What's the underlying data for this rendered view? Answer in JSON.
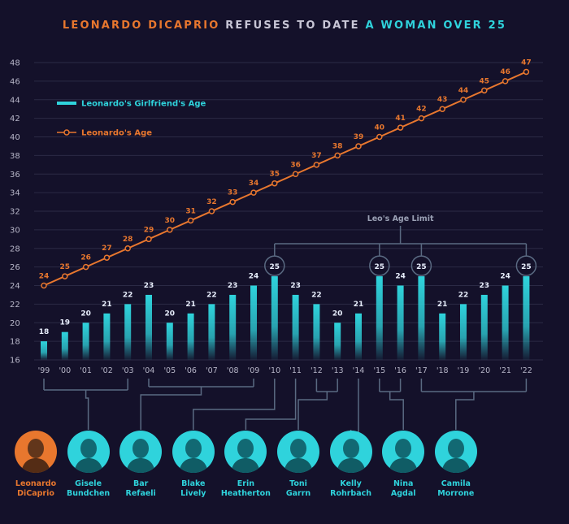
{
  "title": {
    "part1": "LEONARDO DICAPRIO",
    "part2": " REFUSES TO DATE ",
    "part3": "A WOMAN OVER 25"
  },
  "colors": {
    "background": "#14112a",
    "leo": "#e8772e",
    "girlfriend": "#2fd3dc",
    "muted": "#9aa0b4",
    "connector": "#5a6a82"
  },
  "chart_data": {
    "type": "bar",
    "categories": [
      "'99",
      "'00",
      "'01",
      "'02",
      "'03",
      "'04",
      "'05",
      "'06",
      "'07",
      "'08",
      "'09",
      "'10",
      "'11",
      "'12",
      "'13",
      "'14",
      "'15",
      "'16",
      "'17",
      "'18",
      "'19",
      "'20",
      "'21",
      "'22"
    ],
    "series": [
      {
        "name": "Leonardo's Girlfriend's Age",
        "type": "bar",
        "values": [
          18,
          19,
          20,
          21,
          22,
          23,
          20,
          21,
          22,
          23,
          24,
          25,
          23,
          22,
          20,
          21,
          25,
          24,
          25,
          21,
          22,
          23,
          24,
          25
        ]
      },
      {
        "name": "Leonardo's Age",
        "type": "line",
        "values": [
          24,
          25,
          26,
          27,
          28,
          29,
          30,
          31,
          32,
          33,
          34,
          35,
          36,
          37,
          38,
          39,
          40,
          41,
          42,
          43,
          44,
          45,
          46,
          47
        ]
      }
    ],
    "yticks": [
      16,
      18,
      20,
      22,
      24,
      26,
      28,
      30,
      32,
      34,
      36,
      38,
      40,
      42,
      44,
      46,
      48
    ],
    "ylim": [
      16,
      48
    ],
    "grid": true,
    "legend_position": "top-left",
    "annotation": "Leo's Age Limit",
    "limit_highlight_indices": [
      11,
      16,
      18,
      23
    ]
  },
  "people": [
    {
      "first": "Leonardo",
      "last": "DiCaprio",
      "icon": "leonardo-dicaprio-avatar",
      "leo": true
    },
    {
      "first": "Gisele",
      "last": "Bundchen",
      "icon": "gisele-bundchen-avatar",
      "start": 0,
      "end": 4
    },
    {
      "first": "Bar",
      "last": "Refaeli",
      "icon": "bar-refaeli-avatar",
      "start": 5,
      "end": 10
    },
    {
      "first": "Blake",
      "last": "Lively",
      "icon": "blake-lively-avatar",
      "start": 11,
      "end": 11
    },
    {
      "first": "Erin",
      "last": "Heatherton",
      "icon": "erin-heatherton-avatar",
      "start": 12,
      "end": 12
    },
    {
      "first": "Toni",
      "last": "Garrn",
      "icon": "toni-garrn-avatar",
      "start": 13,
      "end": 14
    },
    {
      "first": "Kelly",
      "last": "Rohrbach",
      "icon": "kelly-rohrbach-avatar",
      "start": 15,
      "end": 15
    },
    {
      "first": "Nina",
      "last": "Agdal",
      "icon": "nina-agdal-avatar",
      "start": 16,
      "end": 17
    },
    {
      "first": "Camila",
      "last": "Morrone",
      "icon": "camila-morrone-avatar",
      "start": 18,
      "end": 23
    }
  ]
}
